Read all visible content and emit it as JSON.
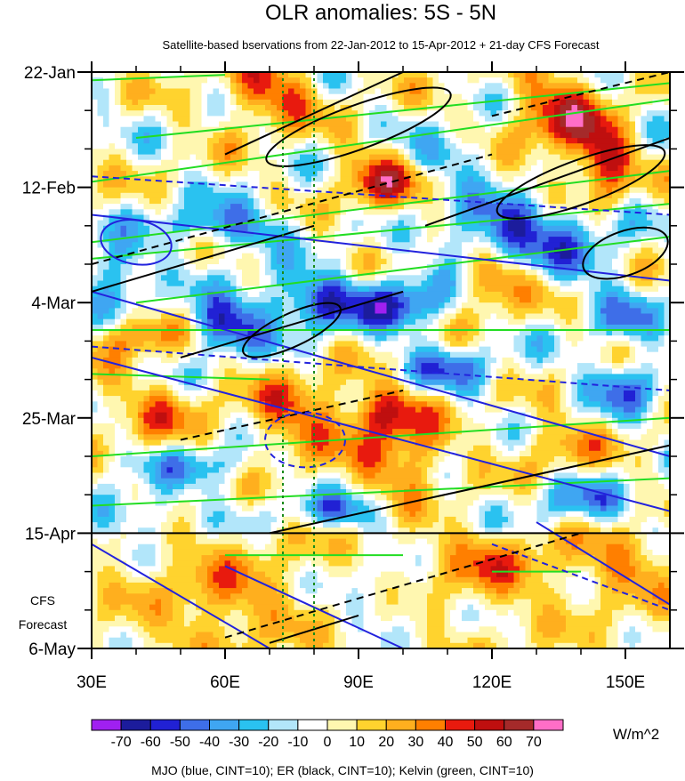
{
  "chart_data": {
    "type": "heatmap",
    "title": "OLR anomalies: 5S - 5N",
    "subtitle": "Satellite-based bservations from 22-Jan-2012 to 15-Apr-2012 + 21-day CFS Forecast",
    "x_axis": {
      "range": [
        30,
        160
      ],
      "ticks": [
        30,
        60,
        90,
        120,
        150
      ],
      "tick_labels": [
        "30E",
        "60E",
        "90E",
        "120E",
        "150E"
      ]
    },
    "y_axis": {
      "range_days": [
        0,
        105
      ],
      "ticks": [
        {
          "label": "22-Jan",
          "day": 0
        },
        {
          "label": "12-Feb",
          "day": 21
        },
        {
          "label": "4-Mar",
          "day": 42
        },
        {
          "label": "25-Mar",
          "day": 63
        },
        {
          "label": "15-Apr",
          "day": 84
        },
        {
          "label": "6-May",
          "day": 105
        }
      ],
      "forecast_start_day": 84,
      "forecast_label": [
        "CFS",
        "Forecast"
      ]
    },
    "reference_lines_lon": [
      73,
      80
    ],
    "colorbar": {
      "levels": [
        -70,
        -60,
        -50,
        -40,
        -30,
        -20,
        -10,
        0,
        10,
        20,
        30,
        40,
        50,
        60,
        70
      ],
      "labels": [
        "-70",
        "-60",
        "-50",
        "-40",
        "-30",
        "-20",
        "-10",
        "0",
        "10",
        "20",
        "30",
        "40",
        "50",
        "60",
        "70"
      ],
      "colors": [
        "#a020f0",
        "#1c1c9c",
        "#2121d4",
        "#3e6ee8",
        "#3fa6f2",
        "#2ac2f0",
        "#b2e6fa",
        "#ffffff",
        "#fff7b0",
        "#ffd32e",
        "#ffaf1e",
        "#ff7f00",
        "#e81a0e",
        "#bf0f0f",
        "#a52a2a",
        "#ff6ec7"
      ],
      "units": "W/m^2"
    },
    "overlays": {
      "mjo_color": "#2222dd",
      "er_color": "#000000",
      "kelvin_color": "#22dd22"
    },
    "footer": "MJO (blue, CINT=10); ER (black, CINT=10); Kelvin (green, CINT=10)"
  }
}
